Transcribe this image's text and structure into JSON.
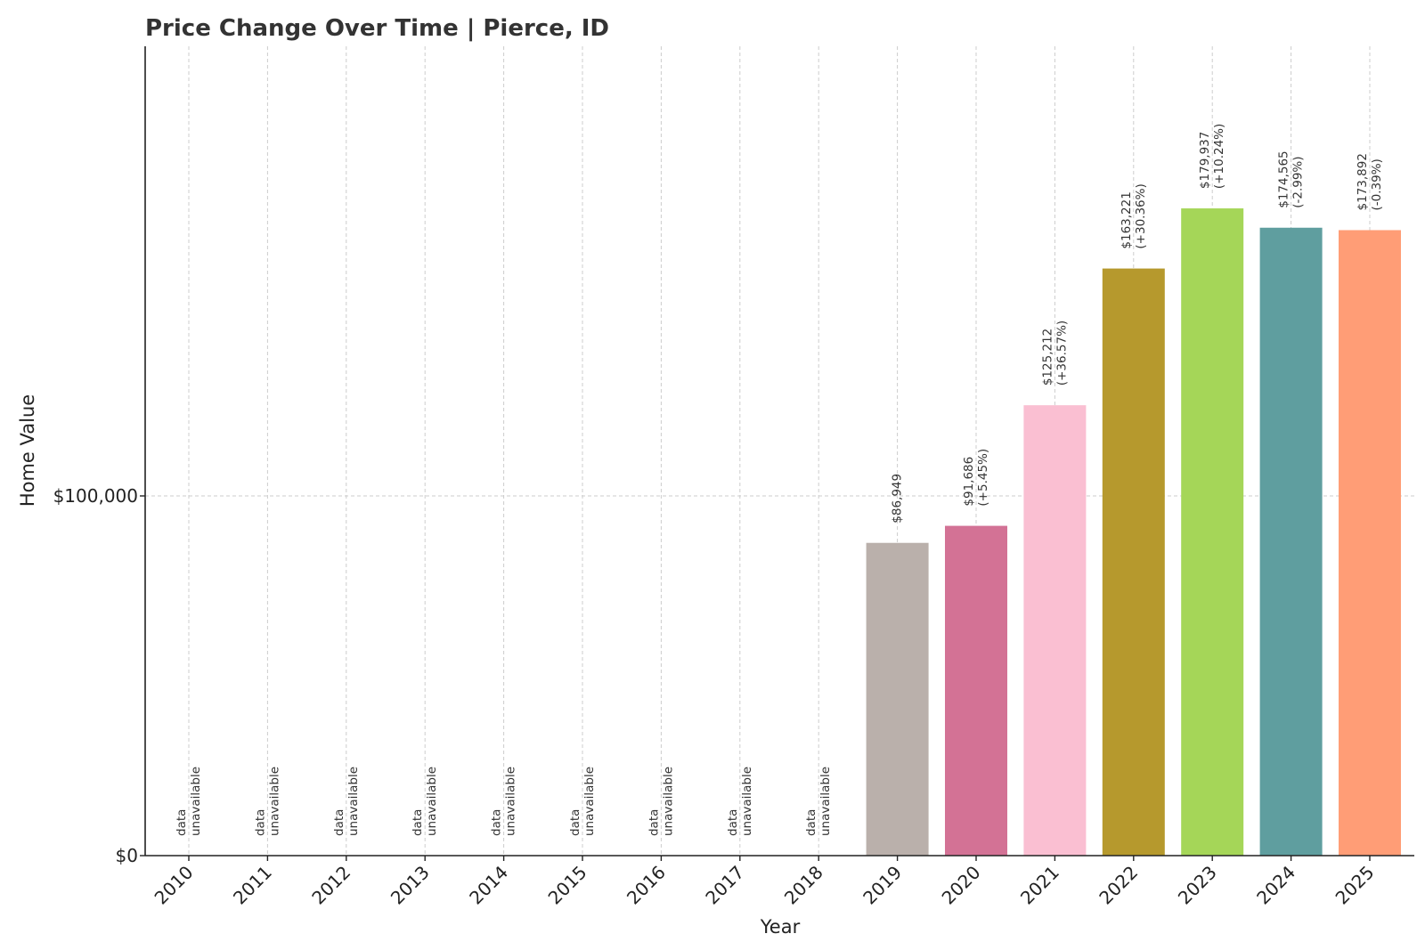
{
  "chart_data": {
    "type": "bar",
    "title": "Price Change Over Time | Pierce, ID",
    "xlabel": "Year",
    "ylabel": "Home Value",
    "ylim": [
      0,
      225000
    ],
    "yticks": [
      {
        "value": 0,
        "label": "$0"
      },
      {
        "value": 100000,
        "label": "$100,000"
      }
    ],
    "grid": true,
    "unavailable_text": [
      "data",
      "unavailable"
    ],
    "categories": [
      "2010",
      "2011",
      "2012",
      "2013",
      "2014",
      "2015",
      "2016",
      "2017",
      "2018",
      "2019",
      "2020",
      "2021",
      "2022",
      "2023",
      "2024",
      "2025"
    ],
    "values": [
      null,
      null,
      null,
      null,
      null,
      null,
      null,
      null,
      null,
      86949,
      91686,
      125212,
      163221,
      179937,
      174565,
      173892
    ],
    "value_labels": [
      null,
      null,
      null,
      null,
      null,
      null,
      null,
      null,
      null,
      "$86,949",
      "$91,686",
      "$125,212",
      "$163,221",
      "$179,937",
      "$174,565",
      "$173,892"
    ],
    "change_labels": [
      null,
      null,
      null,
      null,
      null,
      null,
      null,
      null,
      null,
      null,
      "(+5.45%)",
      "(+36.57%)",
      "(+30.36%)",
      "(+10.24%)",
      "(-2.99%)",
      "(-0.39%)"
    ],
    "colors": [
      "#bab0ab",
      "#bab0ab",
      "#bab0ab",
      "#bab0ab",
      "#bab0ab",
      "#bab0ab",
      "#bab0ab",
      "#bab0ab",
      "#bab0ab",
      "#bab0ab",
      "#d37295",
      "#fabfd2",
      "#b6992d",
      "#a5d658",
      "#5f9e9f",
      "#ff9d76"
    ]
  }
}
